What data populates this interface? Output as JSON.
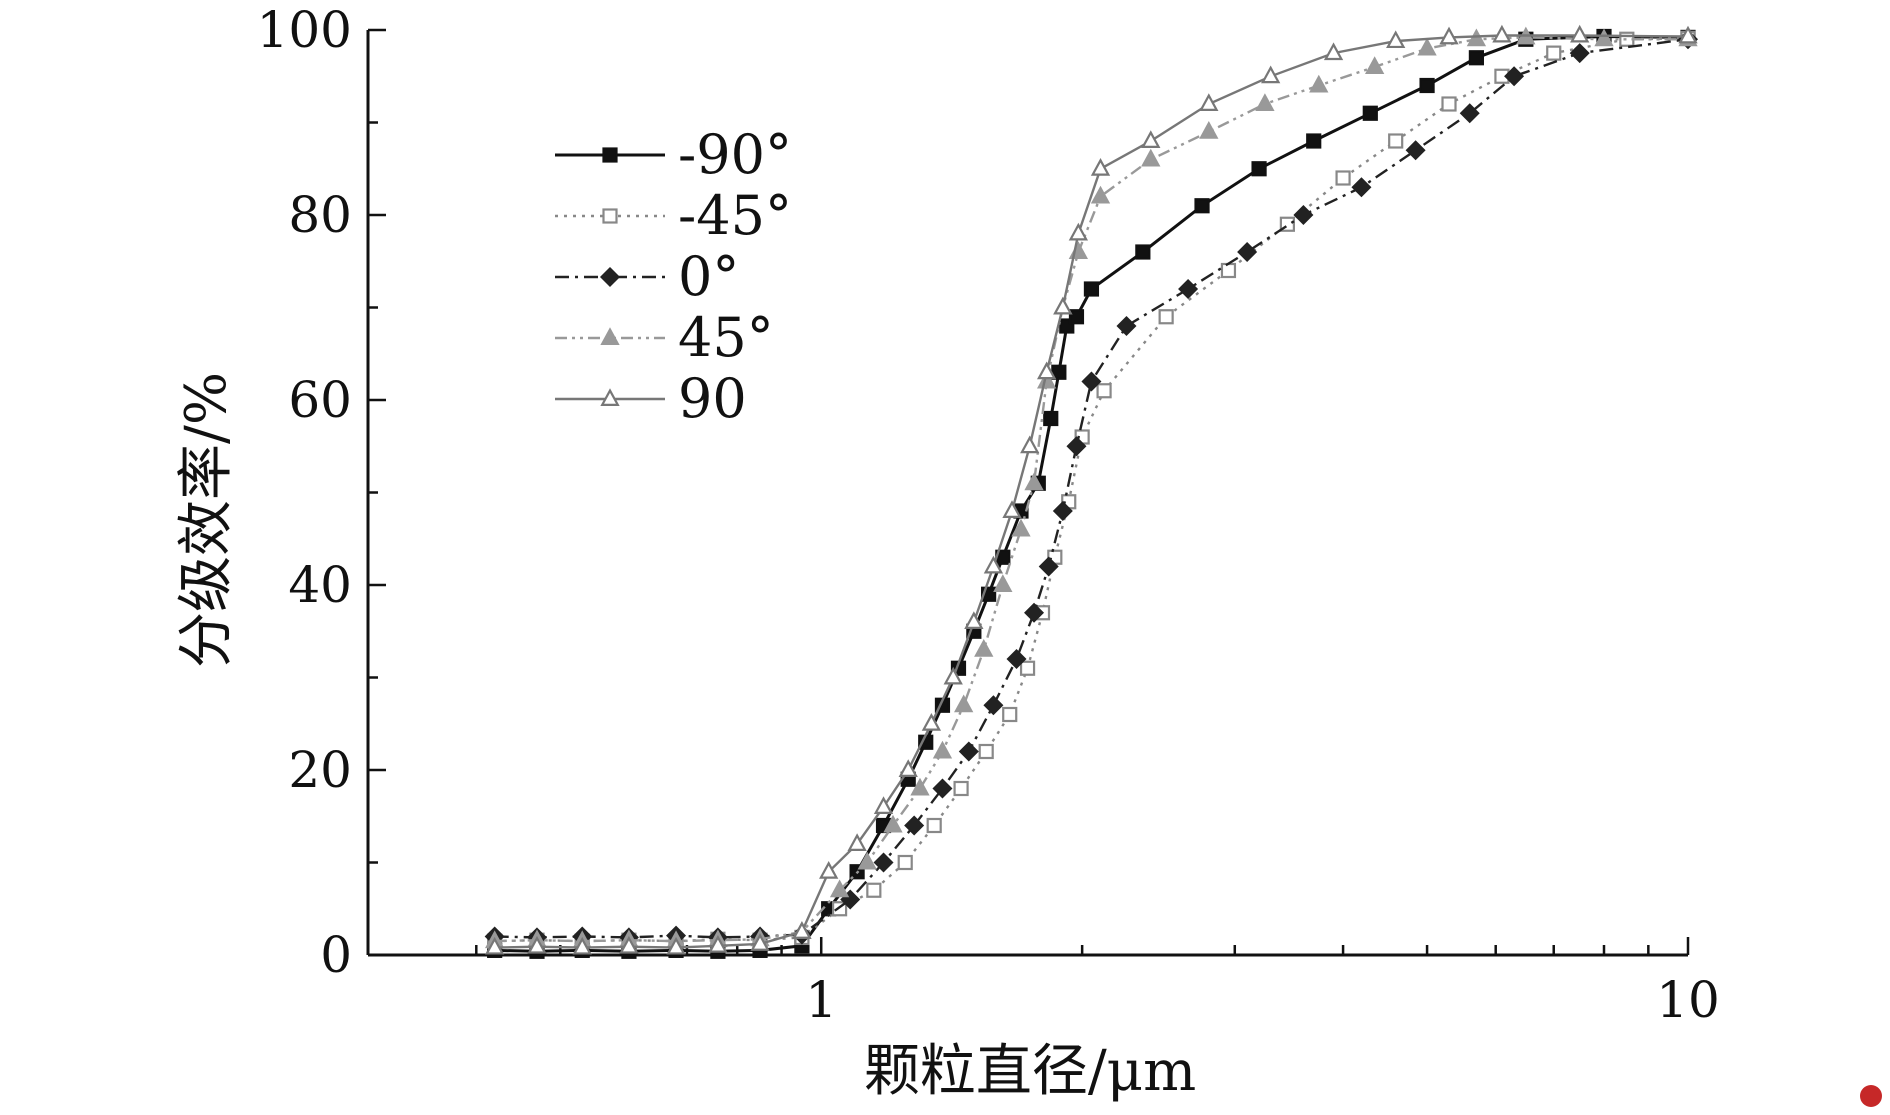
{
  "chart_data": {
    "type": "line",
    "xlabel": "颗粒直径/μm",
    "ylabel": "分级效率/%",
    "x_scale": "log",
    "xlim": [
      0.3,
      10
    ],
    "ylim": [
      0,
      100
    ],
    "x_ticks": [
      {
        "value": 1,
        "label": "1"
      },
      {
        "value": 10,
        "label": "10"
      }
    ],
    "y_ticks": [
      {
        "value": 0,
        "label": "0"
      },
      {
        "value": 20,
        "label": "20"
      },
      {
        "value": 40,
        "label": "40"
      },
      {
        "value": 60,
        "label": "60"
      },
      {
        "value": 80,
        "label": "80"
      },
      {
        "value": 100,
        "label": "100"
      }
    ],
    "grid": false,
    "legend_position": "top-left",
    "series": [
      {
        "name": "-90°",
        "color": "#111111",
        "dash": "",
        "marker": "square-filled",
        "x": [
          0.42,
          0.47,
          0.53,
          0.6,
          0.68,
          0.76,
          0.85,
          0.95,
          1.02,
          1.1,
          1.18,
          1.26,
          1.32,
          1.38,
          1.44,
          1.5,
          1.56,
          1.62,
          1.7,
          1.78,
          1.84,
          1.88,
          1.92,
          1.97,
          2.05,
          2.35,
          2.75,
          3.2,
          3.7,
          4.3,
          5.0,
          5.7,
          6.5,
          8.0,
          10.0
        ],
        "y": [
          0.5,
          0.4,
          0.5,
          0.4,
          0.5,
          0.4,
          0.5,
          1.0,
          5,
          9,
          14,
          19,
          23,
          27,
          31,
          35,
          39,
          43,
          48,
          51,
          58,
          63,
          68,
          69,
          72,
          76,
          81,
          85,
          88,
          91,
          94,
          97,
          99,
          99.3,
          99.2
        ]
      },
      {
        "name": "-45°",
        "color": "#888888",
        "dash": "3,6",
        "marker": "square-open",
        "x": [
          0.42,
          0.47,
          0.53,
          0.6,
          0.68,
          0.76,
          0.85,
          0.95,
          1.05,
          1.15,
          1.25,
          1.35,
          1.45,
          1.55,
          1.65,
          1.73,
          1.8,
          1.86,
          1.93,
          2.0,
          2.12,
          2.5,
          2.95,
          3.45,
          4.0,
          4.6,
          5.3,
          6.1,
          7.0,
          8.5,
          10.0
        ],
        "y": [
          1.5,
          1.6,
          1.5,
          1.6,
          1.5,
          1.7,
          1.6,
          1.9,
          5,
          7,
          10,
          14,
          18,
          22,
          26,
          31,
          37,
          43,
          49,
          56,
          61,
          69,
          74,
          79,
          84,
          88,
          92,
          95,
          97.5,
          99,
          99.1
        ]
      },
      {
        "name": "0°",
        "color": "#222222",
        "dash": "14,6,3,6",
        "marker": "diamond-filled",
        "x": [
          0.42,
          0.47,
          0.53,
          0.6,
          0.68,
          0.76,
          0.85,
          0.95,
          1.08,
          1.18,
          1.28,
          1.38,
          1.48,
          1.58,
          1.68,
          1.76,
          1.83,
          1.9,
          1.97,
          2.05,
          2.25,
          2.65,
          3.1,
          3.6,
          4.2,
          4.85,
          5.6,
          6.3,
          7.5,
          10.0
        ],
        "y": [
          2,
          1.9,
          2,
          1.9,
          2.1,
          1.9,
          2,
          2.2,
          6,
          10,
          14,
          18,
          22,
          27,
          32,
          37,
          42,
          48,
          55,
          62,
          68,
          72,
          76,
          80,
          83,
          87,
          91,
          95,
          97.5,
          99
        ]
      },
      {
        "name": "45°",
        "color": "#999999",
        "dash": "12,5,3,5,3,5",
        "marker": "triangle-filled",
        "x": [
          0.42,
          0.47,
          0.53,
          0.6,
          0.68,
          0.76,
          0.85,
          0.95,
          1.05,
          1.13,
          1.21,
          1.3,
          1.38,
          1.46,
          1.54,
          1.62,
          1.7,
          1.76,
          1.82,
          1.9,
          1.98,
          2.1,
          2.4,
          2.8,
          3.25,
          3.75,
          4.35,
          5.0,
          5.7,
          6.5,
          8.0,
          10.0
        ],
        "y": [
          1.5,
          1.6,
          1.5,
          1.6,
          1.5,
          1.6,
          1.7,
          2.5,
          7,
          10,
          14,
          18,
          22,
          27,
          33,
          40,
          46,
          51,
          62,
          70,
          76,
          82,
          86,
          89,
          92,
          94,
          96,
          98,
          99,
          99.2,
          99,
          99
        ]
      },
      {
        "name": "90",
        "color": "#777777",
        "dash": "",
        "marker": "triangle-open",
        "x": [
          0.42,
          0.47,
          0.53,
          0.6,
          0.68,
          0.76,
          0.85,
          0.95,
          1.02,
          1.1,
          1.18,
          1.26,
          1.34,
          1.42,
          1.5,
          1.58,
          1.66,
          1.74,
          1.82,
          1.9,
          1.98,
          2.1,
          2.4,
          2.8,
          3.3,
          3.9,
          4.6,
          5.3,
          6.1,
          7.5,
          10.0
        ],
        "y": [
          0.8,
          0.9,
          0.8,
          0.9,
          0.8,
          1.0,
          1.2,
          2.5,
          9,
          12,
          16,
          20,
          25,
          30,
          36,
          42,
          48,
          55,
          63,
          70,
          78,
          85,
          88,
          92,
          95,
          97.5,
          98.8,
          99.2,
          99.4,
          99.4,
          99.3
        ]
      }
    ]
  }
}
